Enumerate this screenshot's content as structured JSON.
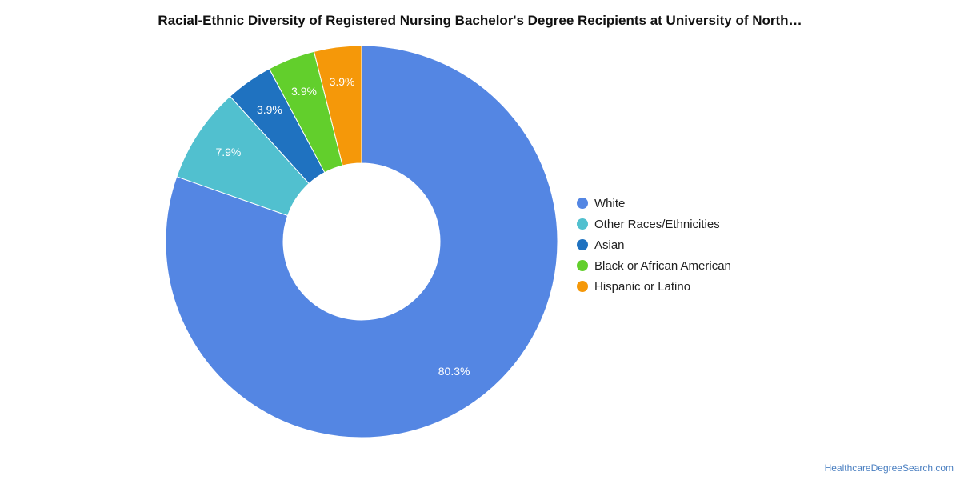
{
  "chart_data": {
    "type": "pie",
    "title": "Racial-Ethnic Diversity of Registered Nursing Bachelor's Degree Recipients at University of North…",
    "donut": true,
    "legend_position": "right",
    "slices": [
      {
        "name": "White",
        "value": 80.3,
        "label": "80.3%",
        "color": "#5486e3"
      },
      {
        "name": "Other Races/Ethnicities",
        "value": 7.9,
        "label": "7.9%",
        "color": "#51c0cf"
      },
      {
        "name": "Asian",
        "value": 3.9,
        "label": "3.9%",
        "color": "#1f72c0"
      },
      {
        "name": "Black or African American",
        "value": 3.9,
        "label": "3.9%",
        "color": "#62cf2c"
      },
      {
        "name": "Hispanic or Latino",
        "value": 3.9,
        "label": "3.9%",
        "color": "#f59809"
      }
    ]
  },
  "watermark": "HealthcareDegreeSearch.com"
}
